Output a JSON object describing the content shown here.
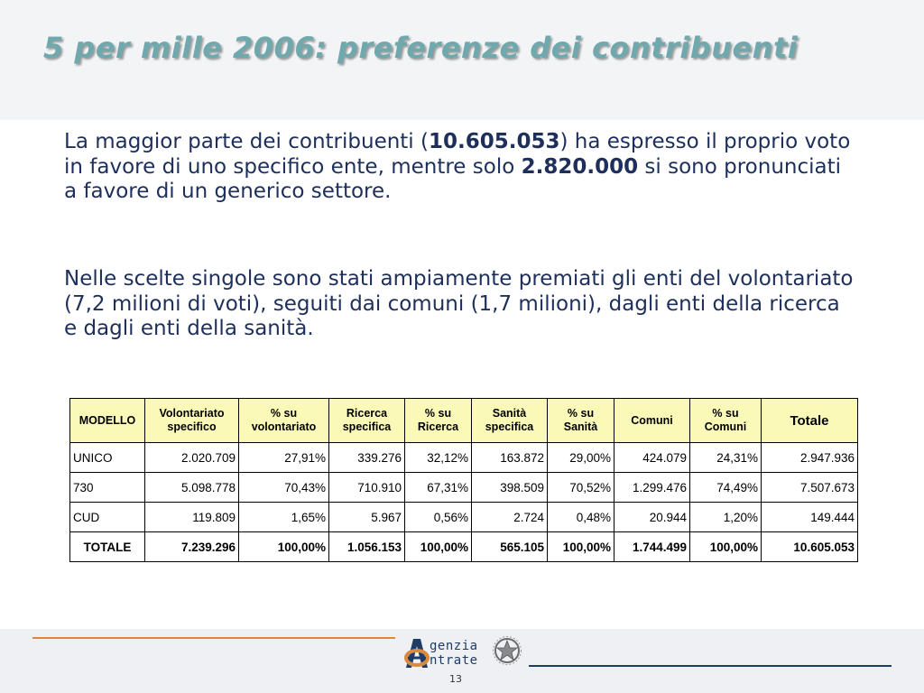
{
  "title": "5 per mille 2006: preferenze dei contribuenti",
  "paragraph1": {
    "a": "La maggior parte dei contribuenti (",
    "b": "10.605.053",
    "c": ") ha espresso il proprio voto in favore di uno specifico ente, mentre solo ",
    "d": "2.820.000",
    "e": " si sono pronunciati a favore di un generico settore."
  },
  "paragraph2": "Nelle scelte singole sono stati ampiamente premiati gli enti del volontariato (7,2 milioni di voti), seguiti dai comuni (1,7 milioni), dagli enti della ricerca e dagli enti della sanità.",
  "table": {
    "headers": [
      "MODELLO",
      "Volontariato specifico",
      "% su volontariato",
      "Ricerca specifica",
      "% su Ricerca",
      "Sanità specifica",
      "% su Sanità",
      "Comuni",
      "% su Comuni",
      "Totale"
    ],
    "rows": [
      [
        "UNICO",
        "2.020.709",
        "27,91%",
        "339.276",
        "32,12%",
        "163.872",
        "29,00%",
        "424.079",
        "24,31%",
        "2.947.936"
      ],
      [
        "730",
        "5.098.778",
        "70,43%",
        "710.910",
        "67,31%",
        "398.509",
        "70,52%",
        "1.299.476",
        "74,49%",
        "7.507.673"
      ],
      [
        "CUD",
        "119.809",
        "1,65%",
        "5.967",
        "0,56%",
        "2.724",
        "0,48%",
        "20.944",
        "1,20%",
        "149.444"
      ]
    ],
    "total": [
      "TOTALE",
      "7.239.296",
      "100,00%",
      "1.056.153",
      "100,00%",
      "565.105",
      "100,00%",
      "1.744.499",
      "100,00%",
      "10.605.053"
    ]
  },
  "footer": {
    "logo_line1": "genzia",
    "logo_line2": "ntrate",
    "logo_icon": "emblem-icon",
    "page_number": "13"
  },
  "colors": {
    "title": "#6fa9ad",
    "body_text": "#1d2f5a",
    "table_header_bg": "#fbf9b8",
    "accent_orange": "#d98a3c",
    "accent_navy": "#1f3c66"
  }
}
